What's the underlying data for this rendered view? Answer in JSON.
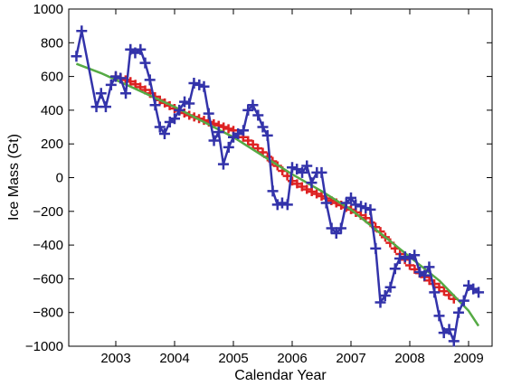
{
  "chart_data": {
    "type": "line",
    "title": "",
    "xlabel": "Calendar Year",
    "ylabel": "Ice Mass (Gt)",
    "xlim": [
      2002.2,
      2009.4
    ],
    "ylim": [
      -1000,
      1000
    ],
    "x_ticks": [
      2003,
      2004,
      2005,
      2006,
      2007,
      2008,
      2009
    ],
    "x_tick_labels": [
      "2003",
      "2004",
      "2005",
      "2006",
      "2007",
      "2008",
      "2009"
    ],
    "y_ticks": [
      -1000,
      -800,
      -600,
      -400,
      -200,
      0,
      200,
      400,
      600,
      800,
      1000
    ],
    "y_tick_labels": [
      "−1000",
      "−800",
      "−600",
      "−400",
      "−200",
      "0",
      "200",
      "400",
      "600",
      "800",
      "1000"
    ],
    "grid": false,
    "legend": "none",
    "series": [
      {
        "color": "#3333aa",
        "style": "line-with-plus-markers",
        "x": [
          2002.33,
          2002.42,
          2002.67,
          2002.75,
          2002.83,
          2002.92,
          2003.0,
          2003.08,
          2003.17,
          2003.25,
          2003.33,
          2003.42,
          2003.5,
          2003.58,
          2003.67,
          2003.75,
          2003.83,
          2003.92,
          2004.0,
          2004.08,
          2004.17,
          2004.25,
          2004.33,
          2004.42,
          2004.5,
          2004.58,
          2004.67,
          2004.75,
          2004.83,
          2004.92,
          2005.0,
          2005.08,
          2005.17,
          2005.25,
          2005.33,
          2005.42,
          2005.5,
          2005.58,
          2005.67,
          2005.75,
          2005.83,
          2005.92,
          2006.0,
          2006.08,
          2006.17,
          2006.25,
          2006.33,
          2006.42,
          2006.5,
          2006.58,
          2006.67,
          2006.75,
          2006.83,
          2006.92,
          2007.0,
          2007.08,
          2007.17,
          2007.25,
          2007.33,
          2007.42,
          2007.5,
          2007.58,
          2007.67,
          2007.75,
          2007.83,
          2007.92,
          2008.0,
          2008.08,
          2008.17,
          2008.25,
          2008.33,
          2008.42,
          2008.5,
          2008.58,
          2008.67,
          2008.75,
          2008.83,
          2008.92,
          2009.0,
          2009.08,
          2009.17
        ],
        "y": [
          720,
          870,
          420,
          500,
          420,
          550,
          600,
          590,
          500,
          760,
          740,
          760,
          680,
          580,
          430,
          300,
          260,
          330,
          350,
          400,
          450,
          440,
          560,
          550,
          540,
          380,
          220,
          270,
          80,
          180,
          240,
          260,
          280,
          400,
          430,
          370,
          300,
          250,
          -80,
          -160,
          -150,
          -160,
          60,
          50,
          30,
          70,
          -30,
          30,
          30,
          -150,
          -300,
          -330,
          -300,
          -150,
          -120,
          -160,
          -170,
          -180,
          -190,
          -420,
          -740,
          -700,
          -650,
          -540,
          -480,
          -470,
          -480,
          -460,
          -560,
          -580,
          -530,
          -680,
          -820,
          -920,
          -900,
          -970,
          -800,
          -730,
          -640,
          -660,
          -680
        ]
      },
      {
        "color": "#dd2222",
        "style": "dense-plus-markers",
        "x": [
          2003.0,
          2003.25,
          2003.5,
          2003.75,
          2004.0,
          2004.25,
          2004.5,
          2004.75,
          2005.0,
          2005.25,
          2005.5,
          2005.75,
          2006.0,
          2006.25,
          2006.5,
          2006.75,
          2007.0,
          2007.25,
          2007.5,
          2007.75,
          2008.0,
          2008.25,
          2008.5,
          2008.75
        ],
        "y": [
          600,
          570,
          520,
          460,
          410,
          370,
          340,
          310,
          280,
          220,
          150,
          70,
          -20,
          -70,
          -110,
          -150,
          -190,
          -240,
          -320,
          -420,
          -520,
          -590,
          -650,
          -720
        ]
      },
      {
        "color": "#55aa44",
        "style": "line",
        "x": [
          2002.33,
          2002.75,
          2003.0,
          2003.5,
          2004.0,
          2004.5,
          2005.0,
          2005.5,
          2006.0,
          2006.5,
          2007.0,
          2007.5,
          2008.0,
          2008.5,
          2009.0,
          2009.17
        ],
        "y": [
          675,
          620,
          580,
          500,
          420,
          330,
          240,
          130,
          20,
          -80,
          -190,
          -330,
          -470,
          -610,
          -790,
          -880
        ]
      }
    ]
  }
}
